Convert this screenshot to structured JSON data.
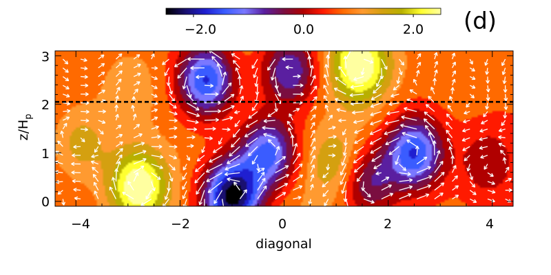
{
  "panel_label": "(d)",
  "chart_data": {
    "type": "heatmap",
    "title": "",
    "xlabel": "diagonal",
    "ylabel": "z/H_p",
    "ylabel_main": "z/H",
    "ylabel_sub": "p",
    "xlim": [
      -4.4,
      4.4
    ],
    "ylim": [
      -0.1,
      3.1
    ],
    "x_ticks": [
      -4,
      -2,
      0,
      2,
      4
    ],
    "x_tick_labels": [
      "−4",
      "−2",
      "0",
      "2",
      "4"
    ],
    "y_ticks": [
      0,
      1,
      2,
      3
    ],
    "y_tick_labels": [
      "0",
      "1",
      "2",
      "3"
    ],
    "dashed_line_z": 2.05,
    "colorbar": {
      "range": [
        -2.5,
        2.5
      ],
      "ticks": [
        -2.0,
        0.0,
        2.0
      ],
      "tick_labels": [
        "−2.0",
        "0.0",
        "2.0"
      ],
      "colors": [
        "#000000",
        "#1a1070",
        "#1f1fd0",
        "#3a5cff",
        "#7a78ff",
        "#5a1fa0",
        "#7a0e40",
        "#b00000",
        "#ff1a00",
        "#ff6a00",
        "#ff9a30",
        "#d4a010",
        "#b8b000",
        "#ffff30",
        "#ffffa0"
      ]
    },
    "field_features": [
      {
        "x": -3.9,
        "z": 1.2,
        "value": 1.2
      },
      {
        "x": -2.8,
        "z": 0.3,
        "value": 2.4
      },
      {
        "x": -3.0,
        "z": 2.3,
        "value": 0.9
      },
      {
        "x": -1.5,
        "z": 2.5,
        "value": -1.8
      },
      {
        "x": -1.0,
        "z": 0.1,
        "value": -2.6
      },
      {
        "x": -0.3,
        "z": 1.0,
        "value": -1.6
      },
      {
        "x": 0.1,
        "z": 2.7,
        "value": -1.2
      },
      {
        "x": 0.7,
        "z": 1.5,
        "value": 0.4
      },
      {
        "x": 1.0,
        "z": 0.8,
        "value": 1.3
      },
      {
        "x": 1.45,
        "z": 2.8,
        "value": 2.3
      },
      {
        "x": 1.6,
        "z": 0.4,
        "value": -0.8
      },
      {
        "x": 2.5,
        "z": 1.0,
        "value": -1.7
      },
      {
        "x": 3.5,
        "z": 2.6,
        "value": 0.6
      },
      {
        "x": 3.9,
        "z": 0.8,
        "value": -0.2
      }
    ]
  }
}
